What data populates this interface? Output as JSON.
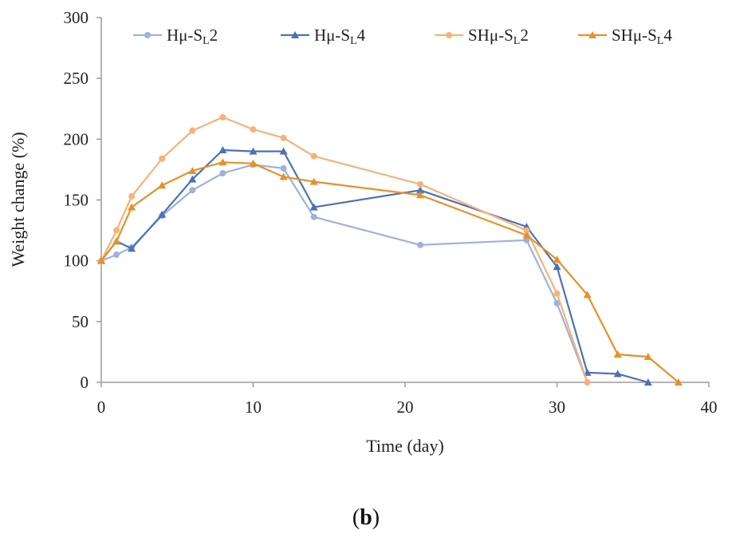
{
  "chart_data": {
    "type": "line",
    "xlabel": "Time (day)",
    "ylabel": "Weight change (%)",
    "xlim": [
      0,
      40
    ],
    "ylim": [
      0,
      300
    ],
    "x_ticks": [
      0,
      10,
      20,
      30,
      40
    ],
    "y_ticks": [
      0,
      50,
      100,
      150,
      200,
      250,
      300
    ],
    "x_tick_labels": [
      "0",
      "10",
      "20",
      "30",
      "40"
    ],
    "y_tick_labels": [
      "0",
      "50",
      "100",
      "150",
      "200",
      "250",
      "300"
    ],
    "grid": false,
    "legend_position": "top",
    "series": [
      {
        "name": "Hμ-S_L2",
        "name_main": "Hμ-S",
        "name_sub": "L",
        "name_tail": "2",
        "color": "#9db2dc",
        "marker": "circle",
        "points": [
          [
            0,
            100
          ],
          [
            1,
            105
          ],
          [
            2,
            111
          ],
          [
            4,
            137
          ],
          [
            6,
            158
          ],
          [
            8,
            172
          ],
          [
            10,
            179
          ],
          [
            12,
            176
          ],
          [
            14,
            136
          ],
          [
            21,
            113
          ],
          [
            28,
            117
          ],
          [
            30,
            65
          ],
          [
            32,
            0
          ]
        ]
      },
      {
        "name": "Hμ-S_L4",
        "name_main": "Hμ-S",
        "name_sub": "L",
        "name_tail": "4",
        "color": "#4a72b8",
        "marker": "triangle",
        "points": [
          [
            0,
            100
          ],
          [
            1,
            116
          ],
          [
            2,
            110
          ],
          [
            4,
            138
          ],
          [
            6,
            167
          ],
          [
            8,
            191
          ],
          [
            10,
            190
          ],
          [
            12,
            190
          ],
          [
            14,
            144
          ],
          [
            21,
            158
          ],
          [
            28,
            128
          ],
          [
            30,
            95
          ],
          [
            32,
            8
          ],
          [
            34,
            7
          ],
          [
            36,
            0
          ]
        ]
      },
      {
        "name": "SHμ-S_L2",
        "name_main": "SHμ-S",
        "name_sub": "L",
        "name_tail": "2",
        "color": "#f5b27a",
        "marker": "circle",
        "points": [
          [
            0,
            100
          ],
          [
            1,
            125
          ],
          [
            2,
            153
          ],
          [
            4,
            184
          ],
          [
            6,
            207
          ],
          [
            8,
            218
          ],
          [
            10,
            208
          ],
          [
            12,
            201
          ],
          [
            14,
            186
          ],
          [
            21,
            163
          ],
          [
            28,
            125
          ],
          [
            30,
            73
          ],
          [
            32,
            0
          ]
        ]
      },
      {
        "name": "SHμ-S_L4",
        "name_main": "SHμ-S",
        "name_sub": "L",
        "name_tail": "4",
        "color": "#e8902a",
        "marker": "triangle",
        "points": [
          [
            0,
            100
          ],
          [
            1,
            116
          ],
          [
            2,
            144
          ],
          [
            4,
            162
          ],
          [
            6,
            174
          ],
          [
            8,
            181
          ],
          [
            10,
            180
          ],
          [
            12,
            169
          ],
          [
            14,
            165
          ],
          [
            21,
            154
          ],
          [
            28,
            121
          ],
          [
            30,
            101
          ],
          [
            32,
            72
          ],
          [
            34,
            23
          ],
          [
            36,
            21
          ],
          [
            38,
            0
          ]
        ]
      }
    ]
  },
  "panel_label": {
    "open": "(",
    "letter": "b",
    "close": ")"
  }
}
